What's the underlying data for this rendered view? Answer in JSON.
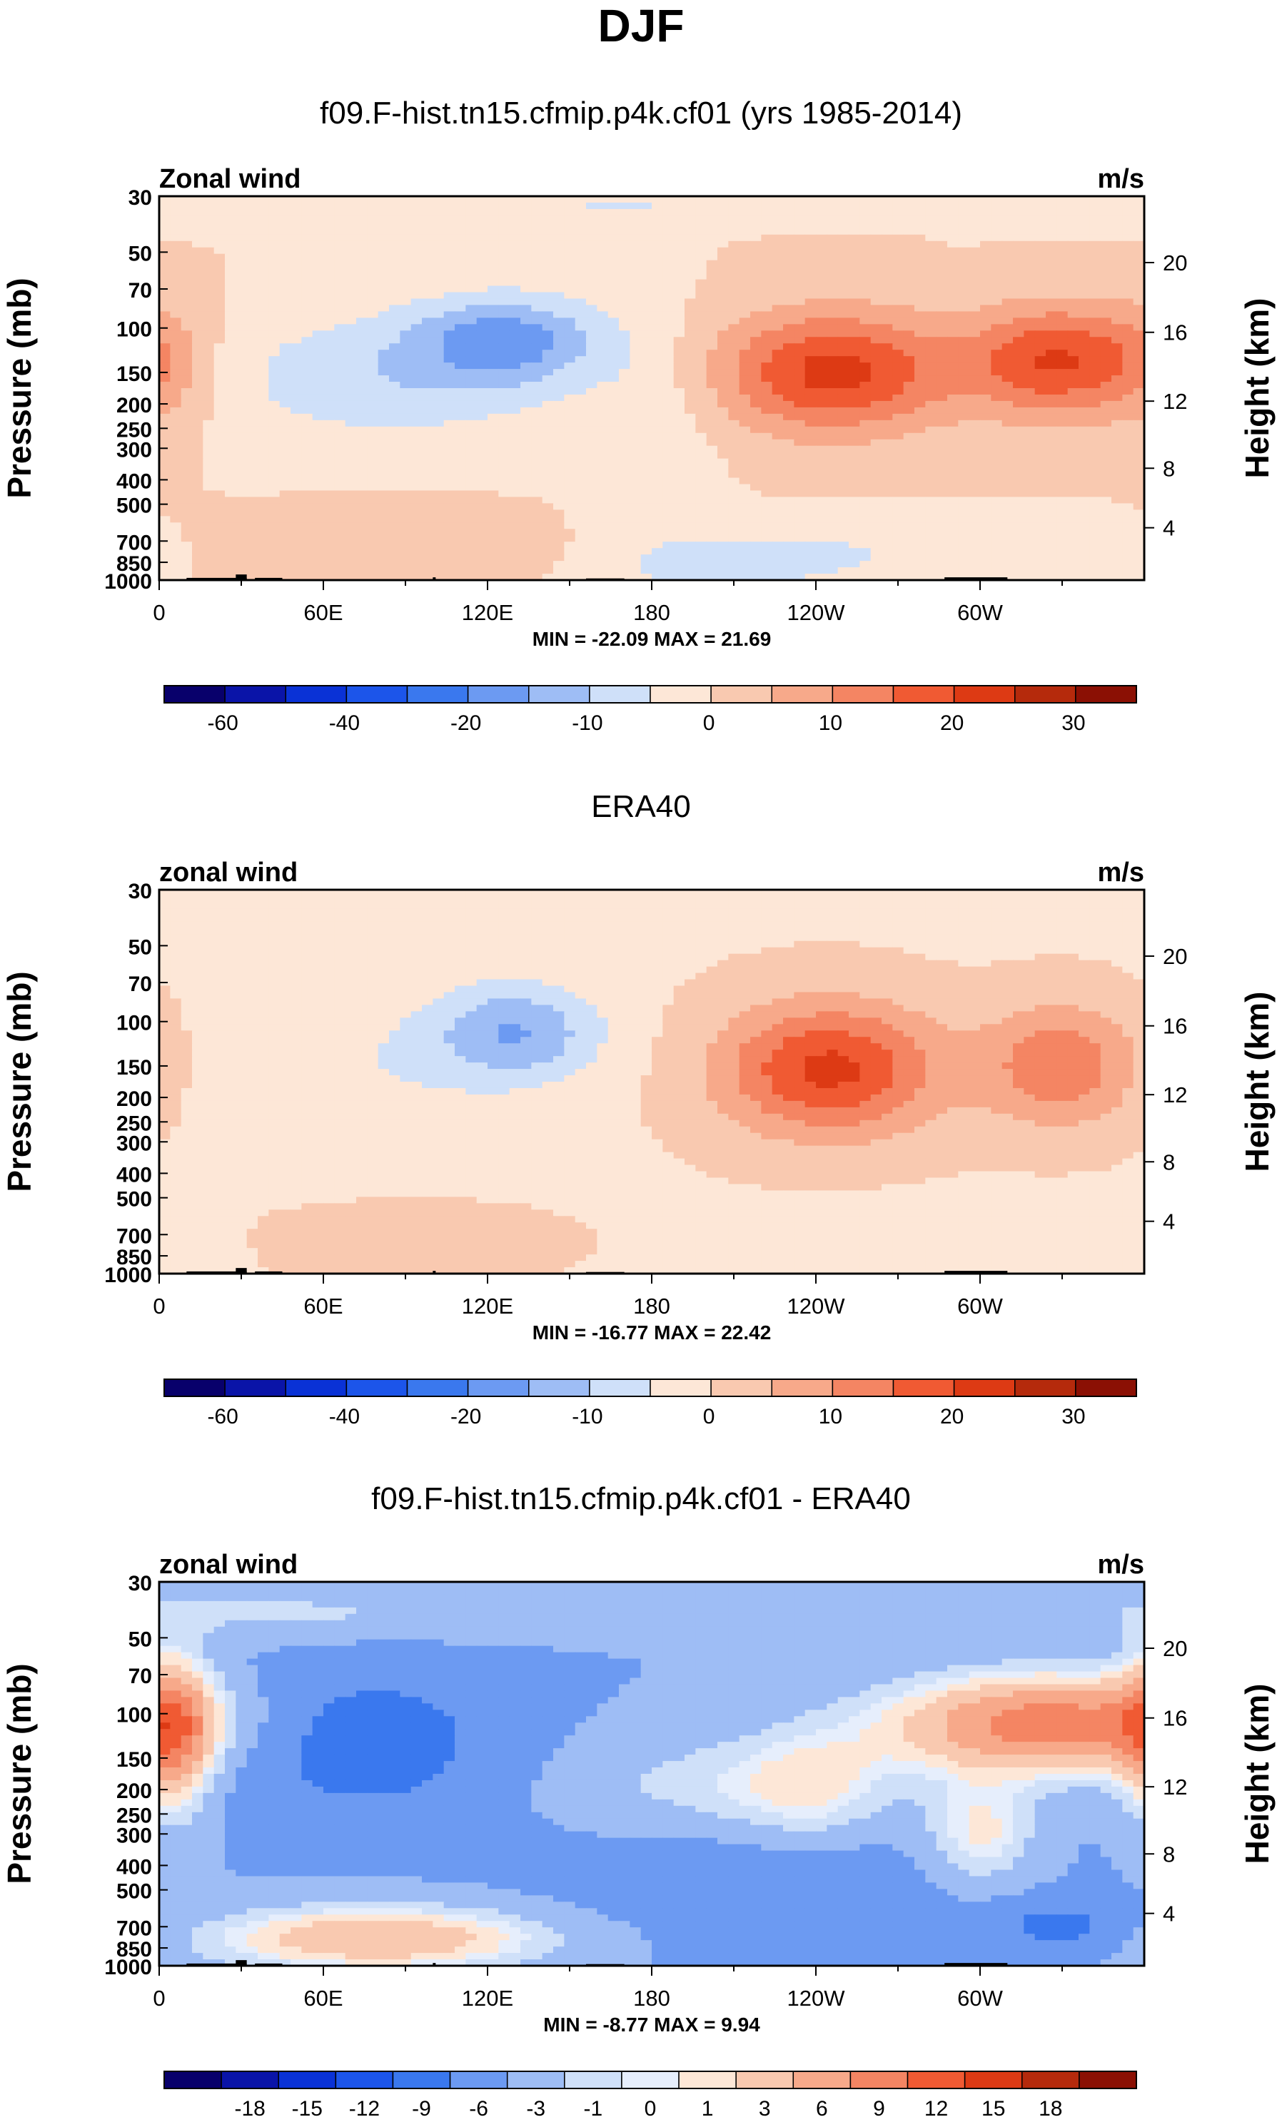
{
  "page_title": "DJF",
  "panels": [
    {
      "title": "f09.F-hist.tn15.cfmip.p4k.cf01 (yrs 1985-2014)",
      "left_label": "Zonal wind",
      "right_label": "m/s",
      "stats": "MIN = -22.09  MAX =  21.69",
      "colorbar_ticks": [
        "-60",
        "-40",
        "-20",
        "-10",
        "0",
        "10",
        "20",
        "30"
      ]
    },
    {
      "title": "ERA40",
      "left_label": "zonal wind",
      "right_label": "m/s",
      "stats": "MIN = -16.77  MAX =  22.42",
      "colorbar_ticks": [
        "-60",
        "-40",
        "-20",
        "-10",
        "0",
        "10",
        "20",
        "30"
      ]
    },
    {
      "title": "f09.F-hist.tn15.cfmip.p4k.cf01 - ERA40",
      "left_label": "zonal wind",
      "right_label": "m/s",
      "stats": "MIN =  -8.77  MAX =   9.94",
      "colorbar_ticks": [
        "-18",
        "-15",
        "-12",
        "-9",
        "-6",
        "-3",
        "-1",
        "0",
        "1",
        "3",
        "6",
        "9",
        "12",
        "15",
        "18"
      ]
    }
  ],
  "chart_data": [
    {
      "type": "heatmap",
      "title": "f09.F-hist.tn15.cfmip.p4k.cf01 (yrs 1985-2014)",
      "variable": "Zonal wind",
      "units": "m/s",
      "xlabel": "",
      "ylabel": "Pressure (mb)",
      "y2label": "Height (km)",
      "x_ticks": [
        "0",
        "60E",
        "120E",
        "180",
        "120W",
        "60W"
      ],
      "y_ticks": [
        "30",
        "50",
        "70",
        "100",
        "150",
        "200",
        "250",
        "300",
        "400",
        "500",
        "700",
        "850",
        "1000"
      ],
      "y2_ticks": [
        "20",
        "16",
        "12",
        "8",
        "4"
      ],
      "min": -22.09,
      "max": 21.69,
      "features": [
        {
          "lon": 125,
          "p": 110,
          "value": -20
        },
        {
          "lon": 85,
          "p": 150,
          "value": -10
        },
        {
          "lon": 245,
          "p": 150,
          "value": 21
        },
        {
          "lon": 325,
          "p": 140,
          "value": 20
        },
        {
          "lon": 0,
          "p": 150,
          "value": 6
        },
        {
          "lon": 90,
          "p": 720,
          "value": 6
        }
      ],
      "levels": [
        -60,
        -50,
        -40,
        -30,
        -20,
        -15,
        -10,
        -5,
        0,
        5,
        10,
        15,
        20,
        25,
        30,
        35
      ],
      "colorbar_labels": [
        "-60",
        "-40",
        "-20",
        "-10",
        "0",
        "10",
        "20",
        "30"
      ]
    },
    {
      "type": "heatmap",
      "title": "ERA40",
      "variable": "zonal wind",
      "units": "m/s",
      "xlabel": "",
      "ylabel": "Pressure (mb)",
      "y2label": "Height (km)",
      "x_ticks": [
        "0",
        "60E",
        "120E",
        "180",
        "120W",
        "60W"
      ],
      "y_ticks": [
        "30",
        "50",
        "70",
        "100",
        "150",
        "200",
        "250",
        "300",
        "400",
        "500",
        "700",
        "850",
        "1000"
      ],
      "y2_ticks": [
        "20",
        "16",
        "12",
        "8",
        "4"
      ],
      "min": -16.77,
      "max": 22.42,
      "features": [
        {
          "lon": 130,
          "p": 110,
          "value": -16
        },
        {
          "lon": 245,
          "p": 150,
          "value": 22
        },
        {
          "lon": 330,
          "p": 150,
          "value": 15
        },
        {
          "lon": 90,
          "p": 750,
          "value": 4
        }
      ],
      "levels": [
        -60,
        -50,
        -40,
        -30,
        -20,
        -15,
        -10,
        -5,
        0,
        5,
        10,
        15,
        20,
        25,
        30,
        35
      ],
      "colorbar_labels": [
        "-60",
        "-40",
        "-20",
        "-10",
        "0",
        "10",
        "20",
        "30"
      ]
    },
    {
      "type": "heatmap",
      "title": "f09.F-hist.tn15.cfmip.p4k.cf01 - ERA40",
      "variable": "zonal wind",
      "units": "m/s",
      "xlabel": "",
      "ylabel": "Pressure (mb)",
      "y2label": "Height (km)",
      "x_ticks": [
        "0",
        "60E",
        "120E",
        "180",
        "120W",
        "60W"
      ],
      "y_ticks": [
        "30",
        "50",
        "70",
        "100",
        "150",
        "200",
        "250",
        "300",
        "400",
        "500",
        "700",
        "850",
        "1000"
      ],
      "y2_ticks": [
        "20",
        "16",
        "12",
        "8",
        "4"
      ],
      "min": -8.77,
      "max": 9.94,
      "features": [
        {
          "lon": 75,
          "p": 130,
          "value": -8
        },
        {
          "lon": 225,
          "p": 400,
          "value": -5
        },
        {
          "lon": 325,
          "p": 110,
          "value": 9
        },
        {
          "lon": 5,
          "p": 120,
          "value": 6
        },
        {
          "lon": 80,
          "p": 780,
          "value": 5
        }
      ],
      "levels": [
        -21,
        -18,
        -15,
        -12,
        -9,
        -6,
        -3,
        -1,
        0,
        1,
        3,
        6,
        9,
        12,
        15,
        18,
        21
      ],
      "colorbar_labels": [
        "-18",
        "-15",
        "-12",
        "-9",
        "-6",
        "-3",
        "-1",
        "0",
        "1",
        "3",
        "6",
        "9",
        "12",
        "15",
        "18"
      ]
    }
  ],
  "colors": {
    "main_16": [
      "#08006b",
      "#0a14a8",
      "#0a32d6",
      "#1c55ea",
      "#3a78ee",
      "#6c9af2",
      "#9ebdf5",
      "#cfe0f9",
      "#fde7d7",
      "#f9c9b0",
      "#f7a98a",
      "#f48563",
      "#f05a33",
      "#dd3a14",
      "#b52a0c",
      "#8b1004"
    ],
    "diff_17": [
      "#08006b",
      "#0a14a8",
      "#0a32d6",
      "#1c55ea",
      "#3a78ee",
      "#6c9af2",
      "#9ebdf5",
      "#cfe0f9",
      "#e6eefc",
      "#fde7d7",
      "#f9c9b0",
      "#f7a98a",
      "#f48563",
      "#f05a33",
      "#dd3a14",
      "#b52a0c",
      "#8b1004"
    ]
  }
}
